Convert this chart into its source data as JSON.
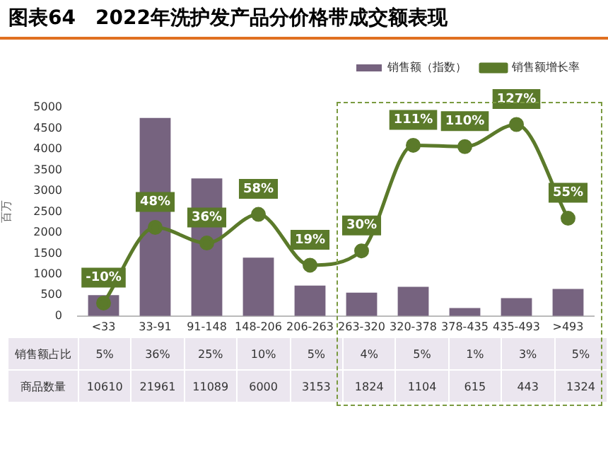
{
  "chart_data": {
    "type": "bar",
    "title": "图表64　2022年洗护发产品分价格带成交额表现",
    "ylabel": "百万",
    "categories": [
      "<33",
      "33-91",
      "91-148",
      "148-206",
      "206-263",
      "263-320",
      "320-378",
      "378-435",
      "435-493",
      ">493"
    ],
    "series": [
      {
        "name": "销售额（指数）",
        "color": "#76637f",
        "values": [
          500,
          4750,
          3300,
          1400,
          730,
          560,
          700,
          190,
          430,
          650
        ]
      },
      {
        "name": "销售额增长率",
        "type": "line",
        "axis": "y2",
        "color": "#5b7a2a",
        "marker": "circle",
        "values": [
          -10,
          48,
          36,
          58,
          19,
          30,
          111,
          110,
          127,
          55
        ],
        "value_labels": [
          "-10%",
          "48%",
          "36%",
          "58%",
          "19%",
          "30%",
          "111%",
          "110%",
          "127%",
          "55%"
        ]
      }
    ],
    "ylim": [
      0,
      5000
    ],
    "yticks": [
      0,
      500,
      1000,
      1500,
      2000,
      2500,
      3000,
      3500,
      4000,
      4500,
      5000
    ],
    "tick_labels": "xy",
    "grid": false,
    "legend": "top right",
    "annotations": [
      "销售额占比",
      "5%",
      "36%",
      "25%",
      "10%",
      "5%",
      "4%",
      "5%",
      "1%",
      "3%",
      "5%",
      "商品数量",
      "10610",
      "21961",
      "11089",
      "6000",
      "3153",
      "1824",
      "1104",
      "615",
      "443",
      "1324"
    ]
  }
}
